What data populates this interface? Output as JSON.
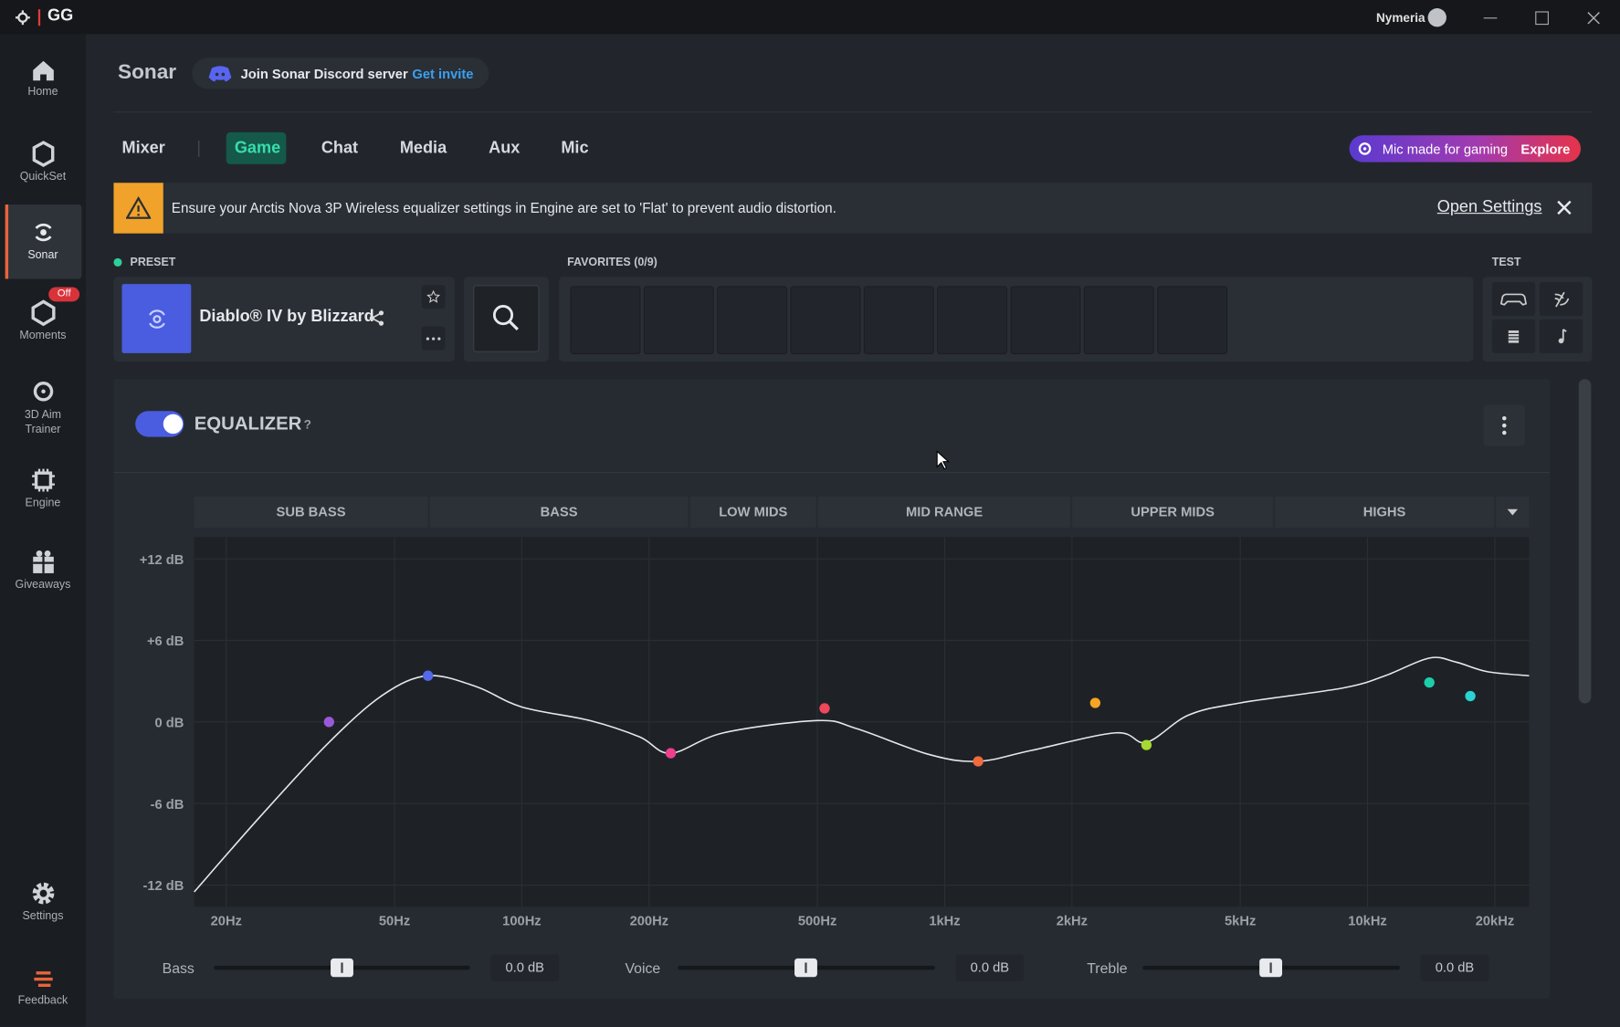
{
  "titlebar": {
    "logo": "GG",
    "user": "Nymeria"
  },
  "sidebar": [
    "Home",
    "QuickSet",
    "Sonar",
    "Moments",
    "3D Aim Trainer",
    "Engine",
    "Giveaways"
  ],
  "moments_badge": "Off",
  "sidebar_bottom": [
    "Settings",
    "Feedback"
  ],
  "header": {
    "title": "Sonar",
    "discord": "Join Sonar Discord server",
    "invite": "Get invite"
  },
  "tabs": [
    "Mixer",
    "Game",
    "Chat",
    "Media",
    "Aux",
    "Mic"
  ],
  "promo": {
    "text": "Mic made for gaming",
    "action": "Explore"
  },
  "alert": {
    "text": "Ensure your Arctis Nova 3P Wireless equalizer settings in Engine are set to 'Flat' to prevent audio distortion.",
    "action": "Open Settings"
  },
  "preset": {
    "label": "PRESET",
    "name": "Diablo® IV by Blizzard"
  },
  "favorites": {
    "label": "FAVORITES (0/9)"
  },
  "test": {
    "label": "TEST"
  },
  "equalizer": {
    "title": "EQUALIZER",
    "help": "?",
    "bands": [
      "SUB BASS",
      "BASS",
      "LOW MIDS",
      "MID RANGE",
      "UPPER MIDS",
      "HIGHS"
    ],
    "xlim": [
      16.8,
      24100
    ],
    "ylim": [
      -13.6,
      13.6
    ],
    "log_x": true,
    "xticks": [
      {
        "value": 20,
        "label": "20Hz"
      },
      {
        "value": 50,
        "label": "50Hz"
      },
      {
        "value": 100,
        "label": "100Hz"
      },
      {
        "value": 200,
        "label": "200Hz"
      },
      {
        "value": 500,
        "label": "500Hz"
      },
      {
        "value": 1000,
        "label": "1kHz"
      },
      {
        "value": 2000,
        "label": "2kHz"
      },
      {
        "value": 5000,
        "label": "5kHz"
      },
      {
        "value": 10000,
        "label": "10kHz"
      },
      {
        "value": 20000,
        "label": "20kHz"
      }
    ],
    "yticks": [
      {
        "value": 12,
        "label": "+12 dB"
      },
      {
        "value": 6,
        "label": "+6 dB"
      },
      {
        "value": 0,
        "label": "0 dB"
      },
      {
        "value": -6,
        "label": "-6 dB"
      },
      {
        "value": -12,
        "label": "-12 dB"
      }
    ],
    "curve": {
      "color": "#e6e8eb",
      "x": [
        16.8,
        24,
        35,
        47,
        60,
        78,
        100,
        145,
        190,
        225,
        300,
        500,
        620,
        920,
        1200,
        1600,
        2540,
        3000,
        3770,
        5000,
        8750,
        11000,
        14000,
        16200,
        19200,
        24100
      ],
      "y": [
        -12.5,
        -7.0,
        -1.5,
        2.0,
        3.4,
        2.6,
        1.1,
        0.1,
        -1.1,
        -2.3,
        -0.8,
        0.1,
        -0.5,
        -2.4,
        -2.9,
        -2.1,
        -0.8,
        -1.5,
        0.5,
        1.4,
        2.5,
        3.4,
        4.7,
        4.4,
        3.7,
        3.4
      ]
    },
    "points": {
      "x": [
        35,
        60,
        225,
        520,
        1200,
        2270,
        3000,
        14000,
        17500
      ],
      "y": [
        0,
        3.4,
        -2.3,
        1.0,
        -2.9,
        1.4,
        -1.7,
        2.9,
        1.9
      ],
      "colors": [
        "#9b59d9",
        "#5468ea",
        "#ec3f8c",
        "#f0475a",
        "#f06a3c",
        "#f5a623",
        "#a6d930",
        "#1ccfaa",
        "#2ad4d4"
      ]
    },
    "sliders": [
      {
        "label": "Bass",
        "value": "0.0 dB"
      },
      {
        "label": "Voice",
        "value": "0.0 dB"
      },
      {
        "label": "Treble",
        "value": "0.0 dB"
      }
    ]
  }
}
